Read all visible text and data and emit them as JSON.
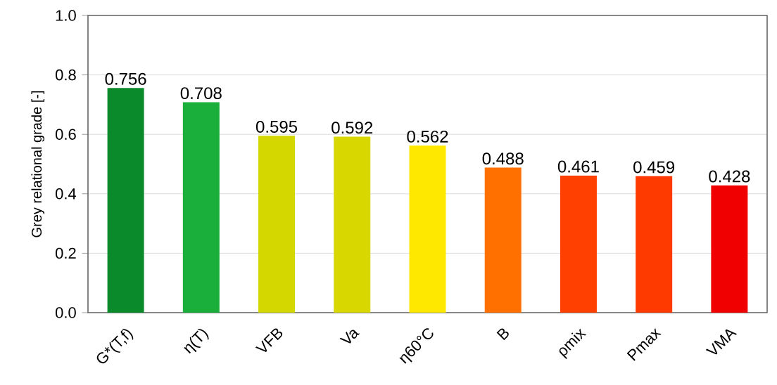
{
  "chart_data": {
    "type": "bar",
    "ylabel": "Grey relational grade [-]",
    "categories": [
      "G*(T,f)",
      "η(T)",
      "VFB",
      "Va",
      "η60°C",
      "B",
      "ρmix",
      "Pmax",
      "VMA"
    ],
    "values": [
      0.756,
      0.708,
      0.595,
      0.592,
      0.562,
      0.488,
      0.461,
      0.459,
      0.428
    ],
    "value_labels": [
      "0.756",
      "0.708",
      "0.595",
      "0.592",
      "0.562",
      "0.488",
      "0.461",
      "0.459",
      "0.428"
    ],
    "colors": [
      "#0a8a2a",
      "#1aae3a",
      "#d4d800",
      "#d8d800",
      "#ffe800",
      "#ff7000",
      "#ff4000",
      "#ff3a00",
      "#f00000"
    ],
    "ylim": [
      0,
      1
    ],
    "yticks": [
      {
        "value": 0,
        "label": "0.0"
      },
      {
        "value": 0.2,
        "label": "0.2"
      },
      {
        "value": 0.4,
        "label": "0.4"
      },
      {
        "value": 0.6,
        "label": "0.6"
      },
      {
        "value": 0.8,
        "label": "0.8"
      },
      {
        "value": 1,
        "label": "1.0"
      }
    ],
    "grid": "y"
  }
}
